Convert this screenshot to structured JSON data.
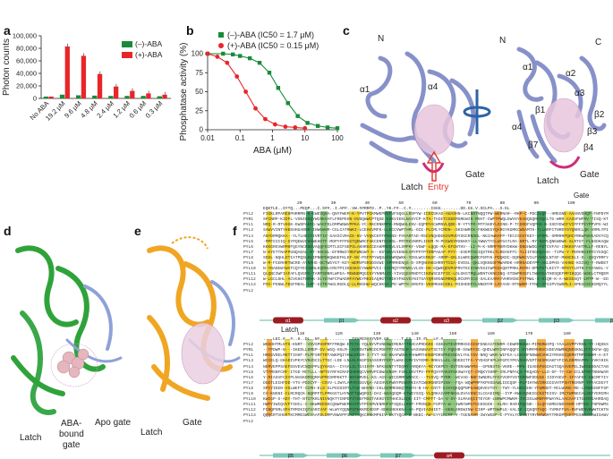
{
  "panels": {
    "a": {
      "letter": "a",
      "chart_data": {
        "type": "bar",
        "ylabel": "Photon counts",
        "ylim": [
          0,
          100000
        ],
        "yticks": [
          "0",
          "20,000",
          "40,000",
          "60,000",
          "80,000",
          "100,000"
        ],
        "categories": [
          "No ABA",
          "19.2 μM",
          "9.6 μM",
          "4.8 μM",
          "2.4 μM",
          "1.2 μM",
          "0.6 μM",
          "0.3 μM"
        ],
        "series": [
          {
            "name": "(–)-ABA",
            "color": "#1a8a3a",
            "values": [
              3000,
              6000,
              5000,
              4500,
              4000,
              4000,
              4000,
              3500
            ]
          },
          {
            "name": "(+)-ABA",
            "color": "#e8262a",
            "values": [
              3000,
              83000,
              68000,
              39000,
              19000,
              12000,
              8000,
              6000
            ]
          }
        ],
        "legend": "top-right"
      }
    },
    "b": {
      "letter": "b",
      "chart_data": {
        "type": "line",
        "xlabel": "ABA (μM)",
        "ylabel": "Phosphatase activity (%)",
        "xscale": "log",
        "xticks": [
          "0.01",
          "0.1",
          "1",
          "10",
          "100"
        ],
        "yticks": [
          "0",
          "25",
          "50",
          "75",
          "100"
        ],
        "ylim": [
          0,
          100
        ],
        "series": [
          {
            "name": "(–)-ABA (IC50 = 1.7 μM)",
            "color": "#1a8a3a",
            "x": [
              0.01,
              0.03,
              0.06,
              0.1,
              0.2,
              0.4,
              0.8,
              1.5,
              3,
              6,
              12,
              25,
              50,
              100
            ],
            "y": [
              100,
              100,
              99,
              97,
              94,
              88,
              75,
              55,
              35,
              18,
              9,
              5,
              3,
              2
            ]
          },
          {
            "name": "(+)-ABA (IC50 = 0.15 μM)",
            "color": "#e8262a",
            "x": [
              0.01,
              0.02,
              0.04,
              0.08,
              0.15,
              0.3,
              0.6,
              1.2,
              2.5,
              5,
              10
            ],
            "y": [
              100,
              96,
              88,
              70,
              50,
              28,
              14,
              7,
              4,
              3,
              2
            ]
          }
        ],
        "legend": "top-right"
      }
    },
    "c": {
      "letter": "c",
      "labels": {
        "n1": "N",
        "a1": "α1",
        "a4": "α4",
        "latch": "Latch",
        "entry": "Entry",
        "gate": "Gate",
        "n2": "N",
        "cterm": "C",
        "a1b": "α1",
        "a2": "α2",
        "a3": "α3",
        "b1": "β1",
        "b2": "β2",
        "b3": "β3",
        "b4": "β4",
        "b7": "β7",
        "a4b": "α4",
        "latch2": "Latch",
        "gate2": "Gate"
      }
    },
    "d": {
      "letter": "d",
      "labels": {
        "latch": "Latch",
        "aba_gate_1": "ABA-",
        "aba_gate_2": "bound",
        "aba_gate_3": "gate",
        "apo_gate": "Apo gate"
      }
    },
    "e": {
      "letter": "e",
      "labels": {
        "latch": "Latch",
        "gate": "Gate"
      }
    },
    "f": {
      "letter": "f",
      "gate_label": "Gate",
      "latch_label": "Latch",
      "top_ruler": [
        "20",
        "30",
        "40",
        "50",
        "60",
        "70",
        "80",
        "90",
        "100"
      ],
      "bottom_ruler": [
        "110",
        "120",
        "130",
        "140",
        "150",
        "160",
        "170",
        "180"
      ],
      "top_consensus": "EQKTLE..SYTQ...PEQP...C.S##..I.AP#..VW.##RRFD..P..YK.F#..C.#........ISGG........DD.GG.V.SCLPA...S.EL",
      "bottom_consensus": "....LEC.#..#..H..DL..NY..S..........T#V#ES##YVD#.GR.....T.F#..I#.#L..L#.#........",
      "top_names": [
        "PYL2",
        "PYR1",
        "PYL1",
        "PYL3",
        "PYL4",
        "PYL5",
        "PYL6",
        "PYL7",
        "PYL8",
        "PYL9",
        "PYL10",
        "PYL11",
        "PYL12",
        "PYL13",
        "PYL2"
      ],
      "bottom_names": [
        "PYL2",
        "PYR1",
        "PYL1",
        "PYL3",
        "PYL4",
        "PYL5",
        "PYL6",
        "PYL7",
        "PYL8",
        "PYL9",
        "PYL10",
        "PYL11",
        "PYL12",
        "PYL13",
        "PYL2"
      ],
      "top_sses": [
        "α1",
        "β1",
        "α2",
        "α3",
        "β2",
        "β3",
        "β4"
      ],
      "bottom_sses": [
        "β5",
        "β6",
        "β7",
        "α4"
      ]
    }
  }
}
